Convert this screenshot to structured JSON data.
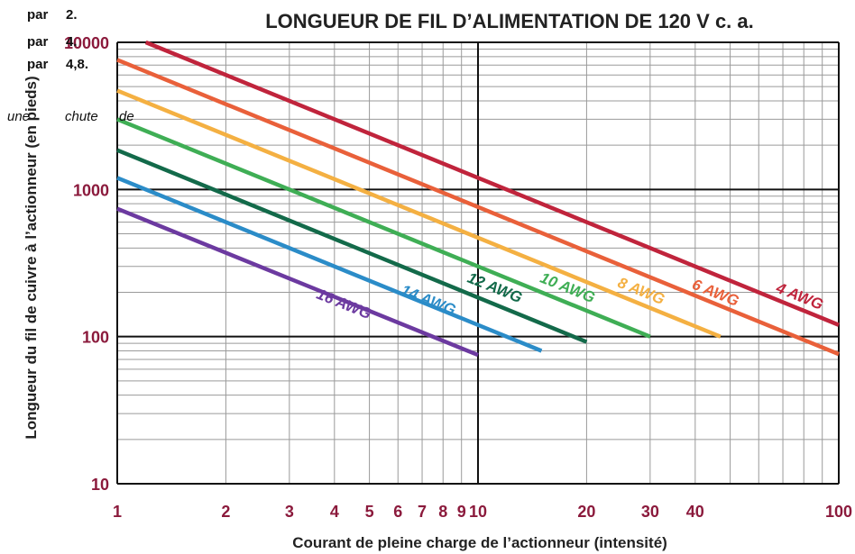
{
  "overlay_text": {
    "line1_a": "par",
    "line1_b": "2.",
    "line2_a": "par",
    "line2_b": "4.",
    "line3_a": "par",
    "line3_b": "4,8.",
    "line4_a": "une",
    "line4_b": "chute",
    "line4_c": "de"
  },
  "chart_data": {
    "type": "line",
    "title": "LONGUEUR DE FIL D’ALIMENTATION DE 120 V c. a.",
    "xlabel": "Courant de pleine charge de l’actionneur (intensité)",
    "ylabel": "Longueur du fil de cuivre à l’actionneur (en pieds)",
    "xscale": "log",
    "yscale": "log",
    "xlim": [
      1,
      100
    ],
    "ylim": [
      10,
      10000
    ],
    "x_ticks": [
      1,
      2,
      3,
      4,
      5,
      6,
      7,
      8,
      9,
      10,
      20,
      30,
      40,
      100
    ],
    "x_tick_labels": [
      "1",
      "2",
      "3",
      "4",
      "5",
      "6",
      "7",
      "8",
      "9",
      "10",
      "20",
      "30",
      "40",
      "100"
    ],
    "y_ticks": [
      10,
      100,
      1000,
      10000
    ],
    "y_tick_labels": [
      "10",
      "100",
      "1000",
      "10000"
    ],
    "grid": true,
    "series": [
      {
        "name": "4 AWG",
        "color": "#c0243c",
        "x": [
          1.2,
          100
        ],
        "y": [
          10000,
          120
        ]
      },
      {
        "name": "6 AWG",
        "color": "#e9603a",
        "x": [
          1,
          100
        ],
        "y": [
          7600,
          76
        ]
      },
      {
        "name": "8 AWG",
        "color": "#f4b042",
        "x": [
          1,
          47
        ],
        "y": [
          4700,
          100
        ]
      },
      {
        "name": "10 AWG",
        "color": "#3fae55",
        "x": [
          1,
          30
        ],
        "y": [
          3000,
          100
        ]
      },
      {
        "name": "12 AWG",
        "color": "#136a4a",
        "x": [
          1,
          20
        ],
        "y": [
          1850,
          92
        ]
      },
      {
        "name": "14 AWG",
        "color": "#2b8cc8",
        "x": [
          1,
          15
        ],
        "y": [
          1200,
          80
        ]
      },
      {
        "name": "16 AWG",
        "color": "#6c3aa0",
        "x": [
          1,
          10
        ],
        "y": [
          740,
          75
        ]
      }
    ],
    "series_label_positions_data": [
      {
        "name": "16 AWG",
        "x": 4.2,
        "y": 155
      },
      {
        "name": "14 AWG",
        "x": 7.2,
        "y": 165
      },
      {
        "name": "12 AWG",
        "x": 11.0,
        "y": 200
      },
      {
        "name": "10 AWG",
        "x": 17.5,
        "y": 200
      },
      {
        "name": "8 AWG",
        "x": 28.0,
        "y": 190
      },
      {
        "name": "6 AWG",
        "x": 45.0,
        "y": 185
      },
      {
        "name": "4 AWG",
        "x": 77.0,
        "y": 175
      }
    ]
  }
}
